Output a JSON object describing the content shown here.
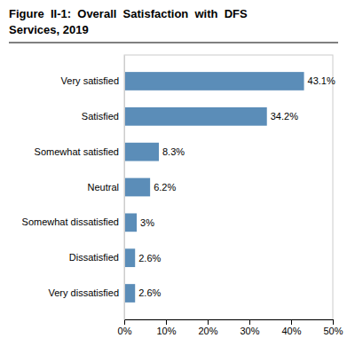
{
  "chart_data": {
    "type": "bar",
    "title": [
      "Figure  II-1:  Overall  Satisfaction  with  DFS",
      "Services, 2019"
    ],
    "orientation": "horizontal",
    "categories": [
      "Very satisfied",
      "Satisfied",
      "Somewhat satisfied",
      "Neutral",
      "Somewhat dissatisfied",
      "Dissatisfied",
      "Very dissatisfied"
    ],
    "values": [
      43.1,
      34.2,
      8.3,
      6.2,
      3.0,
      2.6,
      2.6
    ],
    "value_labels": [
      "43.1%",
      "34.2%",
      "8.3%",
      "6.2%",
      "3%",
      "2.6%",
      "2.6%"
    ],
    "data_labels": true,
    "color": "#5b8db8",
    "xlim": [
      0,
      50
    ],
    "xticks": [
      {
        "value": 0,
        "label": "0%"
      },
      {
        "value": 10,
        "label": "10%"
      },
      {
        "value": 20,
        "label": "20%"
      },
      {
        "value": 30,
        "label": "30%"
      },
      {
        "value": 40,
        "label": "40%"
      },
      {
        "value": 50,
        "label": "50%"
      }
    ],
    "grid": false
  }
}
